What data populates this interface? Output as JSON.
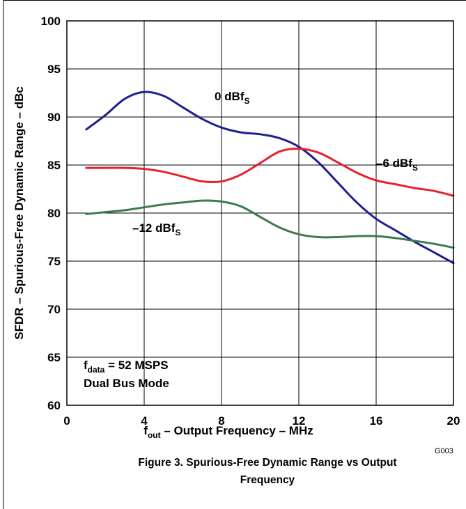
{
  "chart_data": {
    "type": "line",
    "xlabel": {
      "main": "f",
      "sub": "out",
      "rest": " – Output Frequency – MHz"
    },
    "ylabel": "SFDR – Spurious-Free Dynamic Range – dBc",
    "xlim": [
      0,
      20
    ],
    "ylim": [
      60,
      100
    ],
    "xticks": [
      "0",
      "4",
      "8",
      "12",
      "16",
      "20"
    ],
    "yticks": [
      "60",
      "65",
      "70",
      "75",
      "80",
      "85",
      "90",
      "95",
      "100"
    ],
    "grid": true,
    "series": [
      {
        "name": {
          "main": "0 dBf",
          "sub": "S"
        },
        "color": "#1f1f8f",
        "points": [
          [
            1,
            88.7
          ],
          [
            2,
            90.2
          ],
          [
            3,
            91.9
          ],
          [
            4,
            92.6
          ],
          [
            5,
            92.2
          ],
          [
            6,
            91
          ],
          [
            7,
            89.8
          ],
          [
            8,
            88.9
          ],
          [
            9,
            88.4
          ],
          [
            10,
            88.2
          ],
          [
            11,
            87.8
          ],
          [
            12,
            86.9
          ],
          [
            13,
            85.3
          ],
          [
            14,
            83.2
          ],
          [
            15,
            81.1
          ],
          [
            16,
            79.4
          ],
          [
            17,
            78.2
          ],
          [
            18,
            77
          ],
          [
            19,
            75.9
          ],
          [
            20,
            74.8
          ]
        ]
      },
      {
        "name": {
          "main": "–6 dBf",
          "sub": "S"
        },
        "color": "#e8202a",
        "points": [
          [
            1,
            84.7
          ],
          [
            2,
            84.7
          ],
          [
            3,
            84.7
          ],
          [
            4,
            84.6
          ],
          [
            5,
            84.3
          ],
          [
            6,
            83.8
          ],
          [
            7,
            83.3
          ],
          [
            8,
            83.3
          ],
          [
            9,
            84
          ],
          [
            10,
            85.2
          ],
          [
            11,
            86.4
          ],
          [
            12,
            86.7
          ],
          [
            13,
            86.3
          ],
          [
            14,
            85.3
          ],
          [
            15,
            84.2
          ],
          [
            16,
            83.4
          ],
          [
            17,
            83
          ],
          [
            18,
            82.6
          ],
          [
            19,
            82.3
          ],
          [
            20,
            81.8
          ]
        ]
      },
      {
        "name": {
          "main": "–12 dBf",
          "sub": "S"
        },
        "color": "#3f7a4f",
        "points": [
          [
            1,
            79.9
          ],
          [
            2,
            80.1
          ],
          [
            3,
            80.3
          ],
          [
            4,
            80.6
          ],
          [
            5,
            80.9
          ],
          [
            6,
            81.1
          ],
          [
            7,
            81.3
          ],
          [
            8,
            81.2
          ],
          [
            9,
            80.7
          ],
          [
            10,
            79.6
          ],
          [
            11,
            78.5
          ],
          [
            12,
            77.8
          ],
          [
            13,
            77.5
          ],
          [
            14,
            77.5
          ],
          [
            15,
            77.6
          ],
          [
            16,
            77.6
          ],
          [
            17,
            77.4
          ],
          [
            18,
            77.1
          ],
          [
            19,
            76.8
          ],
          [
            20,
            76.4
          ]
        ]
      }
    ],
    "annotation_lines": [
      {
        "main": "f",
        "sub": "data",
        "rest": " = 52 MSPS"
      },
      {
        "main": "Dual Bus Mode"
      }
    ],
    "figure_id": "G003",
    "caption": [
      "Figure 3. Spurious-Free Dynamic Range vs Output",
      "Frequency"
    ]
  }
}
